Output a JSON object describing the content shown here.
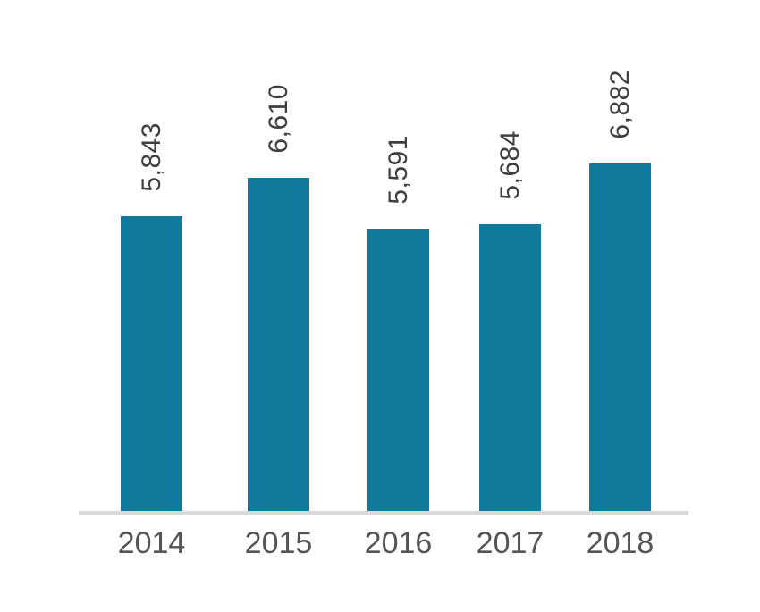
{
  "chart_data": {
    "type": "bar",
    "categories": [
      "2014",
      "2015",
      "2016",
      "2017",
      "2018"
    ],
    "values": [
      5843,
      6610,
      5591,
      5684,
      6882
    ],
    "value_labels": [
      "5,843",
      "6,610",
      "5,591",
      "5,684",
      "6,882"
    ],
    "title": "",
    "xlabel": "",
    "ylabel": "",
    "ylim": [
      0,
      7000
    ],
    "grid": false,
    "legend": "none",
    "value_label_rotation": -90,
    "colors": {
      "bar": "#107a9c",
      "value_label": "#3f3f3f",
      "year_label": "#555555",
      "axis_line": "#d9d9d9"
    }
  }
}
